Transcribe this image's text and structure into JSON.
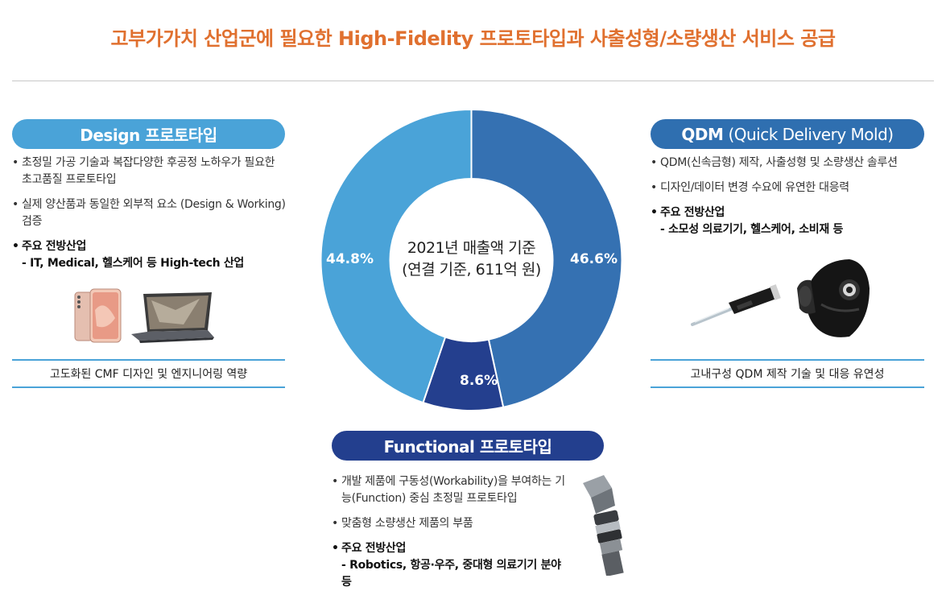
{
  "page_title": "고부가가치 산업군에 필요한 High-Fidelity 프로토타입과 사출성형/소량생산 서비스 공급",
  "design": {
    "title": "Design 프로토타입",
    "bullets": [
      "초정밀 가공 기술과 복잡다양한 후공정 노하우가 필요한 초고품질 프로토타입",
      "실제 양산품과 동일한 외부적 요소 (Design & Working) 검증"
    ],
    "industry_heading": "주요 전방산업",
    "industry_detail": "- IT, Medical, 헬스케어 등 High-tech 산업",
    "footer": "고도화된 CMF 디자인 및 엔지니어링 역량"
  },
  "qdm": {
    "title_main": "QDM",
    "title_sub": "(Quick Delivery Mold)",
    "bullets": [
      "QDM(신속금형) 제작, 사출성형 및 소량생산 솔루션",
      "디자인/데이터 변경 수요에 유연한 대응력"
    ],
    "industry_heading": "주요 전방산업",
    "industry_detail": "- 소모성 의료기기, 헬스케어, 소비재 등",
    "footer": "고내구성 QDM 제작 기술 및 대응 유연성"
  },
  "functional": {
    "title": "Functional 프로토타입",
    "bullets": [
      "개발 제품에 구동성(Workability)을 부여하는 기능(Function) 중심 초정밀 프로토타입",
      "맞춤형 소량생산 제품의 부품"
    ],
    "industry_heading": "주요 전방산업",
    "industry_detail": "- Robotics, 항공·우주, 중대형 의료기기 분야 등"
  },
  "chart_data": {
    "type": "pie",
    "center_label_line1": "2021년 매출액 기준",
    "center_label_line2": "(연결 기준, 611억 원)",
    "slices": [
      {
        "label": "46.6%",
        "value": 46.6,
        "color": "#3571b2"
      },
      {
        "label": "8.6%",
        "value": 8.6,
        "color": "#243f8e"
      },
      {
        "label": "44.8%",
        "value": 44.8,
        "color": "#4aa3d8"
      }
    ]
  }
}
